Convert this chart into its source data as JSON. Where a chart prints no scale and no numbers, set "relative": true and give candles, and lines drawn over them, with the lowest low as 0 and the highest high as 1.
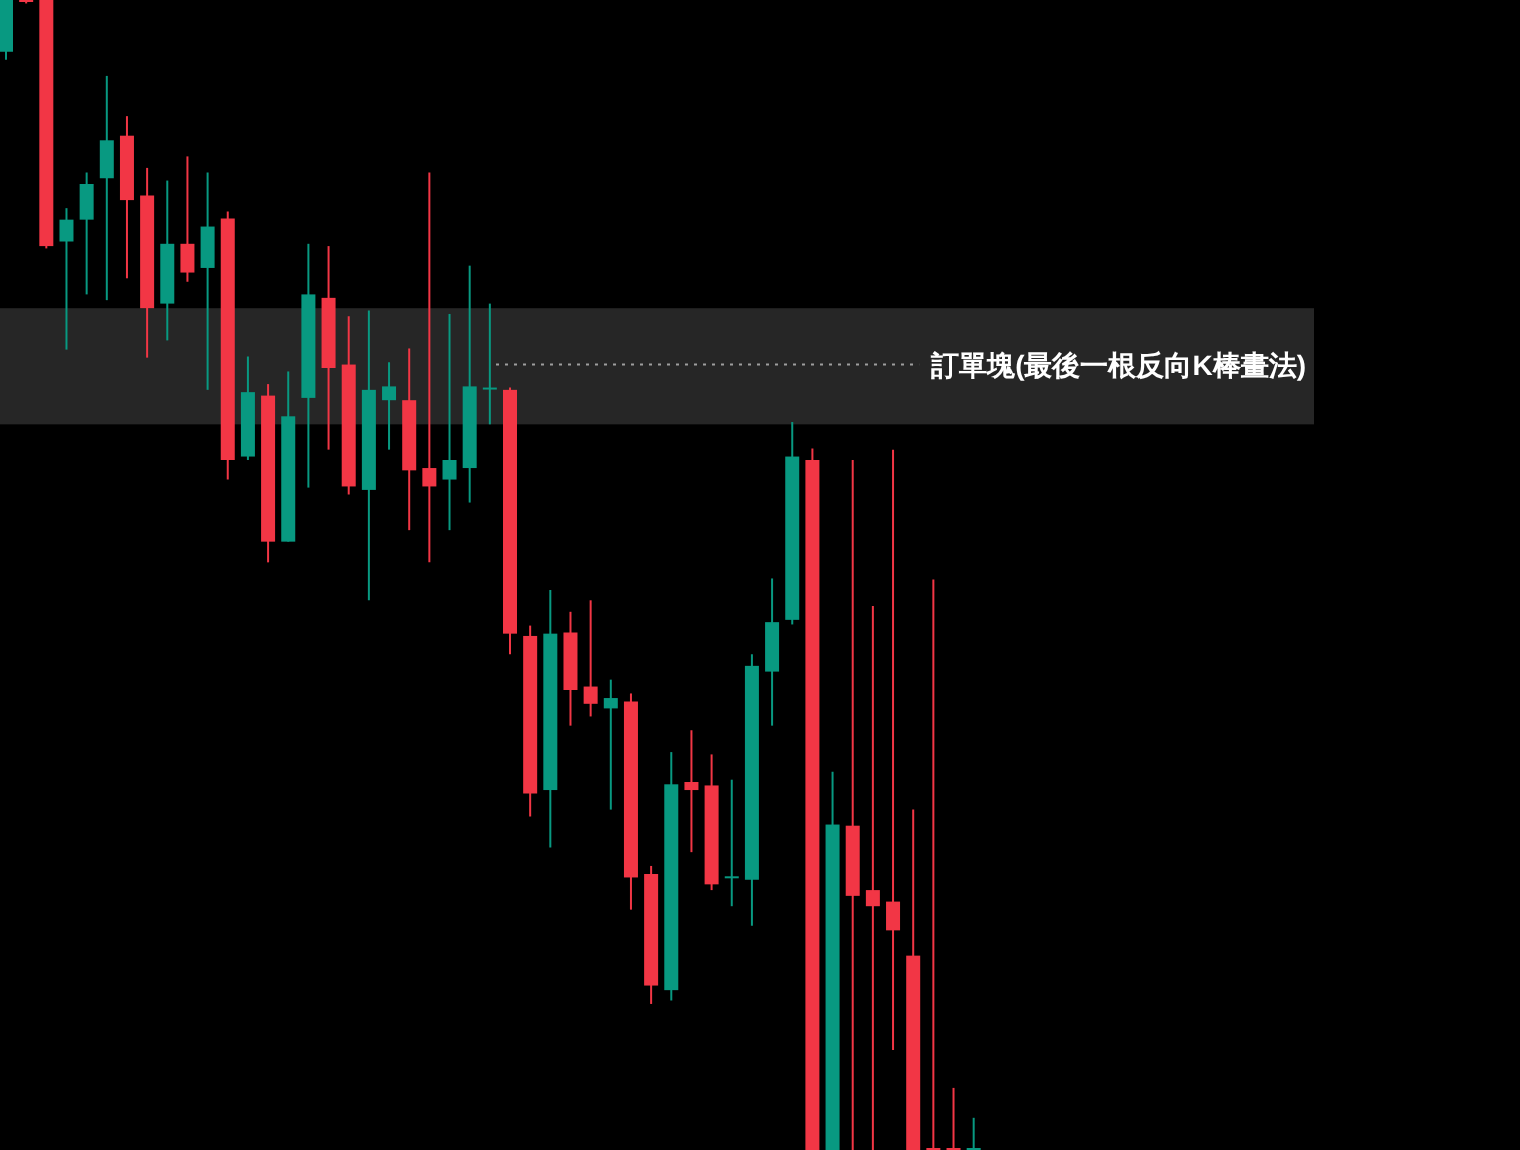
{
  "chart_data": {
    "type": "candlestick",
    "relative": true,
    "categories": [
      null,
      null,
      null,
      null,
      null,
      null,
      null,
      null,
      null,
      null,
      null,
      null,
      null,
      null,
      null,
      null,
      null,
      null,
      null,
      null,
      null,
      null,
      null,
      null,
      null,
      null,
      null,
      null,
      null,
      null,
      null,
      null,
      null,
      null,
      null,
      null,
      null,
      null,
      null,
      null,
      null,
      null,
      null,
      null,
      null,
      null,
      null,
      null,
      null
    ],
    "ohlc": [
      [
        0.955,
        1.0,
        0.948,
        1.0
      ],
      [
        1.0,
        1.0,
        0.997,
        1.0
      ],
      [
        1.0,
        1.0,
        0.784,
        0.786
      ],
      [
        0.79,
        0.819,
        0.696,
        0.809
      ],
      [
        0.809,
        0.85,
        0.744,
        0.84
      ],
      [
        0.845,
        0.934,
        0.739,
        0.878
      ],
      [
        0.882,
        0.899,
        0.758,
        0.826
      ],
      [
        0.83,
        0.854,
        0.689,
        0.732
      ],
      [
        0.736,
        0.843,
        0.704,
        0.788
      ],
      [
        0.788,
        0.864,
        0.755,
        0.763
      ],
      [
        0.767,
        0.85,
        0.661,
        0.803
      ],
      [
        0.81,
        0.816,
        0.583,
        0.6
      ],
      [
        0.603,
        0.69,
        0.6,
        0.659
      ],
      [
        0.656,
        0.666,
        0.511,
        0.529
      ],
      [
        0.529,
        0.677,
        0.529,
        0.638
      ],
      [
        0.654,
        0.788,
        0.576,
        0.744
      ],
      [
        0.741,
        0.786,
        0.609,
        0.68
      ],
      [
        0.683,
        0.725,
        0.57,
        0.577
      ],
      [
        0.574,
        0.73,
        0.478,
        0.661
      ],
      [
        0.652,
        0.685,
        0.609,
        0.664
      ],
      [
        0.652,
        0.697,
        0.539,
        0.591
      ],
      [
        0.593,
        0.85,
        0.511,
        0.577
      ],
      [
        0.583,
        0.727,
        0.539,
        0.6
      ],
      [
        0.593,
        0.769,
        0.563,
        0.664
      ],
      [
        0.663,
        0.736,
        0.631,
        0.663
      ],
      [
        0.661,
        0.663,
        0.431,
        0.449
      ],
      [
        0.447,
        0.456,
        0.29,
        0.31
      ],
      [
        0.313,
        0.487,
        0.263,
        0.449
      ],
      [
        0.45,
        0.468,
        0.369,
        0.4
      ],
      [
        0.403,
        0.478,
        0.377,
        0.388
      ],
      [
        0.384,
        0.409,
        0.296,
        0.393
      ],
      [
        0.39,
        0.397,
        0.209,
        0.237
      ],
      [
        0.24,
        0.247,
        0.127,
        0.143
      ],
      [
        0.139,
        0.346,
        0.13,
        0.318
      ],
      [
        0.32,
        0.365,
        0.259,
        0.313
      ],
      [
        0.317,
        0.344,
        0.226,
        0.231
      ],
      [
        0.238,
        0.322,
        0.212,
        0.238
      ],
      [
        0.235,
        0.431,
        0.195,
        0.421
      ],
      [
        0.416,
        0.497,
        0.369,
        0.459
      ],
      [
        0.461,
        0.633,
        0.457,
        0.603
      ],
      [
        0.6,
        0.61,
        0.0,
        0.0
      ],
      [
        0.0,
        0.329,
        0.0,
        0.283
      ],
      [
        0.282,
        0.6,
        0.0,
        0.221
      ],
      [
        0.226,
        0.473,
        0.0,
        0.212
      ],
      [
        0.216,
        0.609,
        0.087,
        0.191
      ],
      [
        0.169,
        0.296,
        0.0,
        0.0
      ],
      [
        0.0,
        0.496,
        0.0,
        0.0
      ],
      [
        0.0,
        0.054,
        0.0,
        0.0
      ],
      [
        0.0,
        0.028,
        0.0,
        0.0
      ]
    ],
    "colors": [
      "#089981",
      "#f23645",
      "#f23645",
      "#089981",
      "#089981",
      "#089981",
      "#f23645",
      "#f23645",
      "#089981",
      "#f23645",
      "#089981",
      "#f23645",
      "#089981",
      "#f23645",
      "#089981",
      "#089981",
      "#f23645",
      "#f23645",
      "#089981",
      "#089981",
      "#f23645",
      "#f23645",
      "#089981",
      "#089981",
      "#089981",
      "#f23645",
      "#f23645",
      "#089981",
      "#f23645",
      "#f23645",
      "#089981",
      "#f23645",
      "#f23645",
      "#089981",
      "#f23645",
      "#f23645",
      "#089981",
      "#089981",
      "#089981",
      "#089981",
      "#f23645",
      "#089981",
      "#f23645",
      "#f23645",
      "#f23645",
      "#f23645",
      "#f23645",
      "#f23645",
      "#089981"
    ],
    "bands": [
      {
        "axis": "y",
        "from": 0.631,
        "to": 0.732,
        "color": "#262626"
      }
    ],
    "ref_lines": [
      {
        "axis": "y",
        "value": 0.683,
        "label": "訂單塊(最後一根反向K棒畫法)",
        "line_style": "dotted",
        "color": "#9e9e9e"
      }
    ]
  }
}
